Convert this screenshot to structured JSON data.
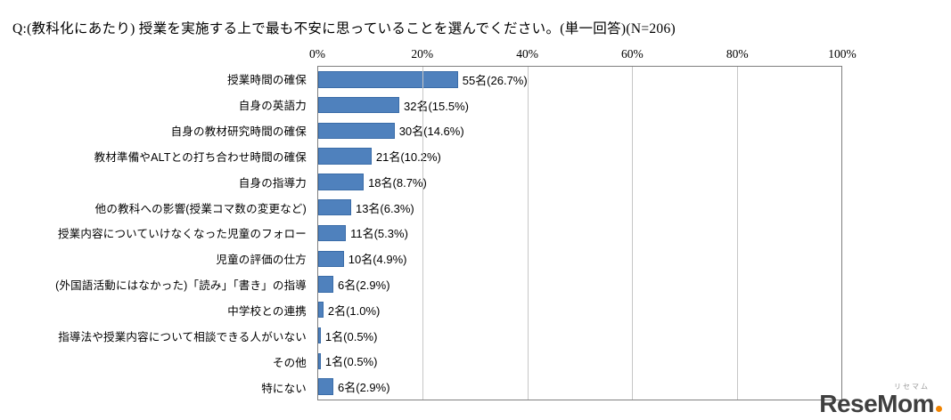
{
  "title": "Q:(教科化にあたり) 授業を実施する上で最も不安に思っていることを選んでください。(単一回答)(N=206)",
  "chart_data": {
    "type": "bar",
    "orientation": "horizontal",
    "title": "Q:(教科化にあたり) 授業を実施する上で最も不安に思っていることを選んでください。(単一回答)(N=206)",
    "categories": [
      "授業時間の確保",
      "自身の英語力",
      "自身の教材研究時間の確保",
      "教材準備やALTとの打ち合わせ時間の確保",
      "自身の指導力",
      "他の教科への影響(授業コマ数の変更など)",
      "授業内容についていけなくなった児童のフォロー",
      "児童の評価の仕方",
      "(外国語活動にはなかった)「読み」「書き」の指導",
      "中学校との連携",
      "指導法や授業内容について相談できる人がいない",
      "その他",
      "特にない"
    ],
    "values": [
      26.7,
      15.5,
      14.6,
      10.2,
      8.7,
      6.3,
      5.3,
      4.9,
      2.9,
      1.0,
      0.5,
      0.5,
      2.9
    ],
    "counts": [
      55,
      32,
      30,
      21,
      18,
      13,
      11,
      10,
      6,
      2,
      1,
      1,
      6
    ],
    "value_labels": [
      "55名(26.7%)",
      "32名(15.5%)",
      "30名(14.6%)",
      "21名(10.2%)",
      "18名(8.7%)",
      "13名(6.3%)",
      "11名(5.3%)",
      "10名(4.9%)",
      "6名(2.9%)",
      "2名(1.0%)",
      "1名(0.5%)",
      "1名(0.5%)",
      "6名(2.9%)"
    ],
    "x_ticks": [
      "0%",
      "20%",
      "40%",
      "60%",
      "80%",
      "100%"
    ],
    "xlim": [
      0,
      100
    ],
    "grid": true,
    "legend": "none",
    "bar_color": "#4f81bd"
  },
  "logo": {
    "text": "ReseMom",
    "furigana": "リセマム",
    "dot_color": "#f08300"
  }
}
